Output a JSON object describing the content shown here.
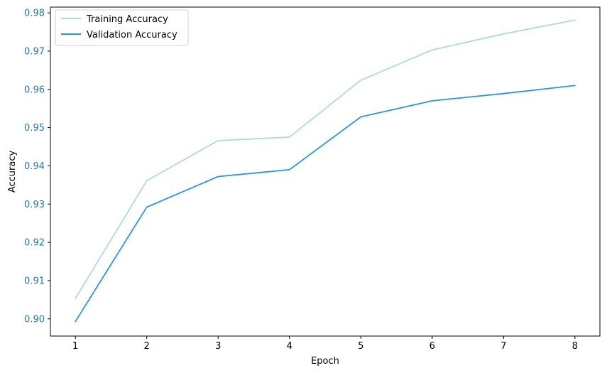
{
  "chart_data": {
    "type": "line",
    "title": "",
    "xlabel": "Epoch",
    "ylabel": "Accuracy",
    "x": [
      1,
      2,
      3,
      4,
      5,
      6,
      7,
      8
    ],
    "xticks": [
      "1",
      "2",
      "3",
      "4",
      "5",
      "6",
      "7",
      "8"
    ],
    "yticks": [
      "0.90",
      "0.91",
      "0.92",
      "0.93",
      "0.94",
      "0.95",
      "0.96",
      "0.97",
      "0.98"
    ],
    "xlim": [
      0.65,
      8.35
    ],
    "ylim": [
      0.8955,
      0.9815
    ],
    "grid": false,
    "legend_position": "upper-left",
    "y_tick_label_color": "#1f77b4",
    "series": [
      {
        "name": "Training Accuracy",
        "color": "#add8e6",
        "values": [
          0.9053,
          0.9361,
          0.9466,
          0.9475,
          0.9624,
          0.9703,
          0.9745,
          0.9781
        ]
      },
      {
        "name": "Validation Accuracy",
        "color": "#2196f3",
        "values": [
          0.8993,
          0.9292,
          0.9372,
          0.939,
          0.9528,
          0.957,
          0.9589,
          0.961
        ]
      }
    ]
  }
}
